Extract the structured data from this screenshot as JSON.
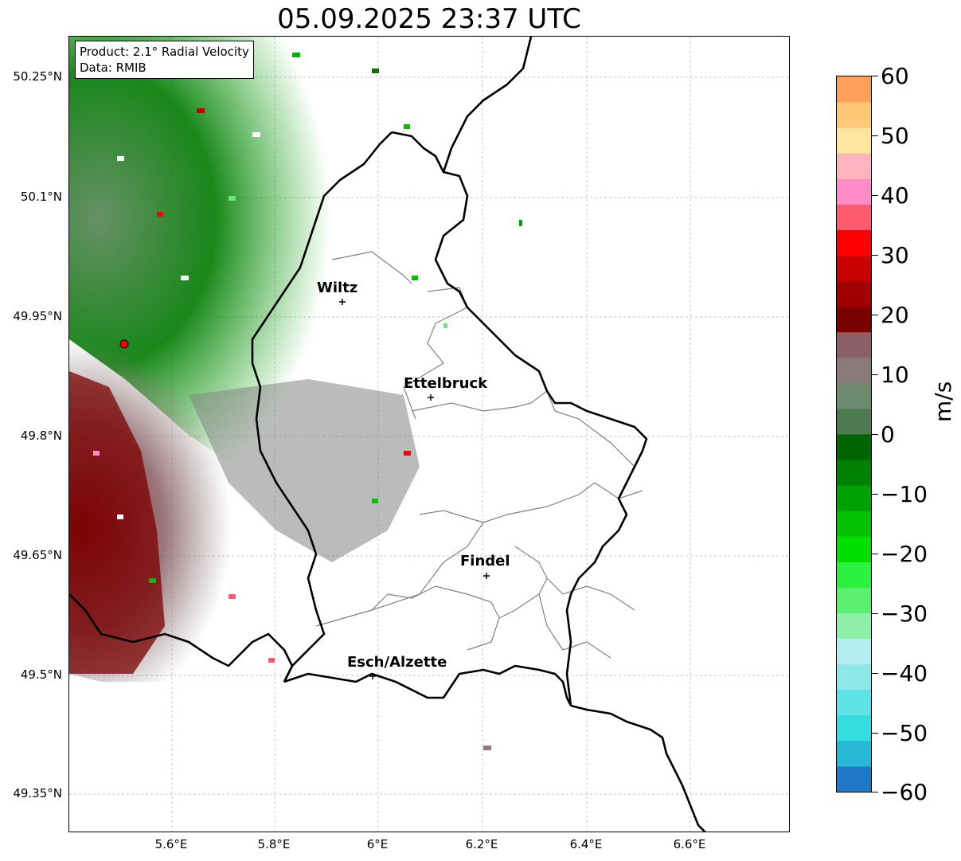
{
  "title": "05.09.2025 23:37 UTC",
  "info": {
    "product": "Product: 2.1° Radial Velocity",
    "data_source": "Data: RMIB"
  },
  "latitude_labels": [
    "50.25°N",
    "50.1°N",
    "49.95°N",
    "49.8°N",
    "49.65°N",
    "49.5°N",
    "49.35°N"
  ],
  "longitude_labels": [
    "5.6°E",
    "5.8°E",
    "6°E",
    "6.2°E",
    "6.4°E",
    "6.6°E"
  ],
  "cities": [
    {
      "name": "Wiltz"
    },
    {
      "name": "Ettelbruck"
    },
    {
      "name": "Findel"
    },
    {
      "name": "Esch/Alzette"
    }
  ],
  "radar_site_color": "#ff0000",
  "colorbar": {
    "unit": "m/s",
    "tick_labels": [
      "60",
      "50",
      "40",
      "30",
      "20",
      "10",
      "0",
      "−10",
      "−20",
      "−30",
      "−40",
      "−50",
      "−60"
    ],
    "range": [
      -60,
      60
    ],
    "colors_bottom_to_top": [
      "#1f78c8",
      "#27b8d8",
      "#35dce0",
      "#5fe3e6",
      "#8ee8ea",
      "#b4eef0",
      "#8ef0a8",
      "#5cf070",
      "#2ef040",
      "#00e000",
      "#00c000",
      "#00a000",
      "#008000",
      "#006400",
      "#4f7a4f",
      "#6e8a6e",
      "#8a7a7a",
      "#8a5f66",
      "#7a0000",
      "#a00000",
      "#c80000",
      "#ff0000",
      "#ff5a6e",
      "#ff8cc8",
      "#ffb4c0",
      "#ffe6a0",
      "#ffc878",
      "#ffa05a"
    ]
  },
  "map_colors": {
    "country_border": "#000000",
    "district_border": "#808080",
    "inbound_velocity": "#006400",
    "outbound_velocity": "#7a0000",
    "near_zero_velocity": "#6e8a6e"
  }
}
